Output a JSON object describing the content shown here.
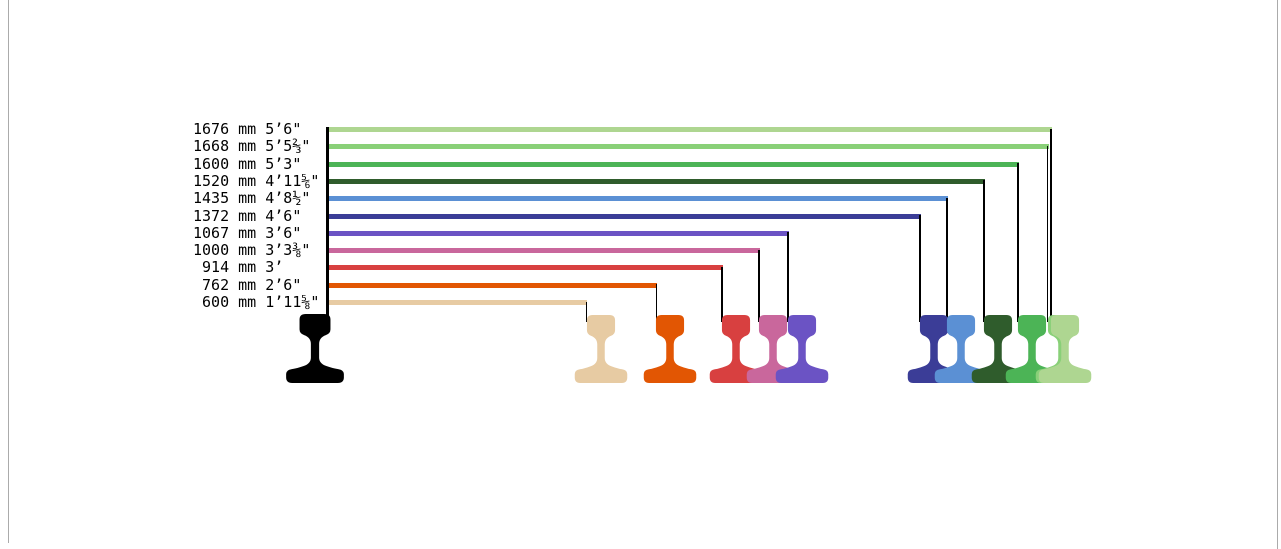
{
  "page": {
    "background": "#ffffff",
    "border_color": "#ababab"
  },
  "diagram": {
    "reference_rail_color": "#000000",
    "connector_color": "#000000",
    "gauges": [
      {
        "mm": 1676,
        "imperial": "5’6\"",
        "label": "1676 mm 5’6\"",
        "color": "#aed691"
      },
      {
        "mm": 1668,
        "imperial": "5’5⅔\"",
        "label": "1668 mm 5’5⅔\"",
        "color": "#89d078"
      },
      {
        "mm": 1600,
        "imperial": "5’3\"",
        "label": "1600 mm 5’3\"",
        "color": "#4cb456"
      },
      {
        "mm": 1520,
        "imperial": "4’11⅚\"",
        "label": "1520 mm 4’11⅚\"",
        "color": "#2f5c2c"
      },
      {
        "mm": 1435,
        "imperial": "4’8½\"",
        "label": "1435 mm 4’8½\"",
        "color": "#5b90d4"
      },
      {
        "mm": 1372,
        "imperial": "4’6\"",
        "label": "1372 mm 4’6\"",
        "color": "#3b3d97"
      },
      {
        "mm": 1067,
        "imperial": "3’6\"",
        "label": "1067 mm 3’6\"",
        "color": "#6b53c4"
      },
      {
        "mm": 1000,
        "imperial": "3’3⅜\"",
        "label": "1000 mm 3’3⅜\"",
        "color": "#c9679c"
      },
      {
        "mm": 914,
        "imperial": "3’",
        "label": " 914 mm 3’",
        "color": "#d84040"
      },
      {
        "mm": 762,
        "imperial": "2’6\"",
        "label": " 762 mm 2’6\"",
        "color": "#e25603"
      },
      {
        "mm": 600,
        "imperial": "1’11⅝\"",
        "label": " 600 mm 1’11⅝\"",
        "color": "#e7cba3"
      }
    ]
  }
}
